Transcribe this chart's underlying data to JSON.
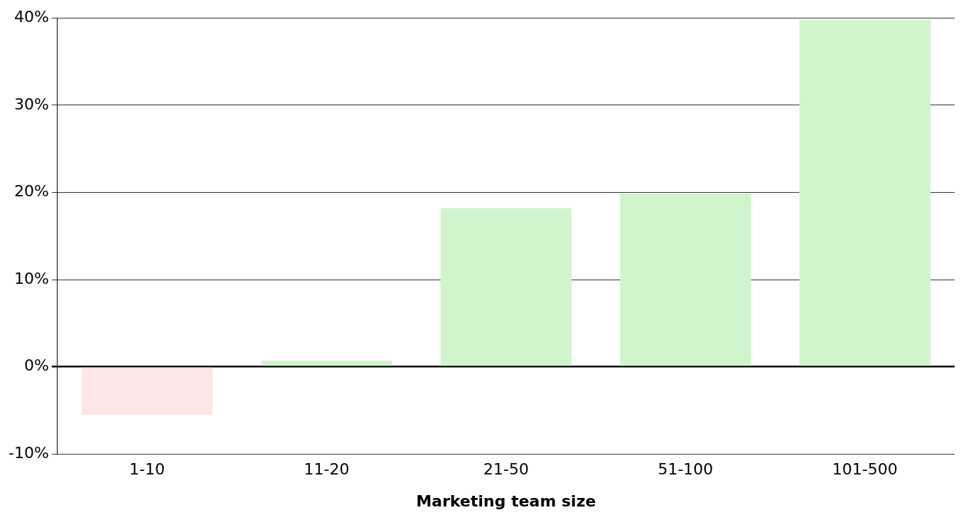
{
  "chart_data": {
    "type": "bar",
    "xlabel": "Marketing team size",
    "categories": [
      "1-10",
      "11-20",
      "21-50",
      "51-100",
      "101-500"
    ],
    "values": [
      -5.5,
      0.7,
      18.2,
      19.9,
      39.8
    ],
    "colors": [
      "#fde6e6",
      "#d0f5cc",
      "#d0f5cc",
      "#d0f5cc",
      "#d0f5cc"
    ],
    "ylim": [
      -10,
      40
    ],
    "yticks": [
      {
        "value": -10,
        "label": "-10%"
      },
      {
        "value": 0,
        "label": "0%"
      },
      {
        "value": 10,
        "label": "10%"
      },
      {
        "value": 20,
        "label": "20%"
      },
      {
        "value": 30,
        "label": "30%"
      },
      {
        "value": 40,
        "label": "40%"
      }
    ],
    "grid": "y",
    "legend": false
  }
}
